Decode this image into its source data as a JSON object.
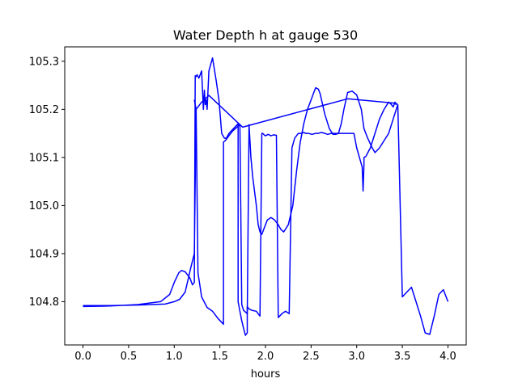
{
  "chart_data": {
    "type": "line",
    "title": "Water Depth h at gauge 530",
    "xlabel": "hours",
    "ylabel": "",
    "xlim": [
      -0.2,
      4.2
    ],
    "ylim": [
      104.71,
      105.33
    ],
    "xticks": [
      0.0,
      0.5,
      1.0,
      1.5,
      2.0,
      2.5,
      3.0,
      3.5,
      4.0
    ],
    "xtick_labels": [
      "0.0",
      "0.5",
      "1.0",
      "1.5",
      "2.0",
      "2.5",
      "3.0",
      "3.5",
      "4.0"
    ],
    "yticks": [
      104.8,
      104.9,
      105.0,
      105.1,
      105.2,
      105.3
    ],
    "ytick_labels": [
      "104.8",
      "104.9",
      "105.0",
      "105.1",
      "105.2",
      "105.3"
    ],
    "grid": false,
    "legend": false,
    "color": "#0000ff",
    "series": [
      {
        "x": [
          0.0,
          0.3,
          0.6,
          0.85,
          0.95,
          1.0,
          1.05,
          1.08,
          1.12,
          1.17,
          1.2,
          1.22,
          1.23,
          1.23,
          1.24,
          1.25,
          1.27,
          1.28,
          1.3,
          1.32,
          1.33,
          1.34,
          1.35,
          1.36,
          1.38,
          1.42,
          1.46,
          1.49,
          1.52,
          1.55,
          1.57,
          1.6,
          1.65,
          1.7,
          1.7,
          1.72,
          1.74,
          1.76,
          1.78,
          1.8,
          1.8,
          1.81,
          1.82,
          1.85,
          1.9,
          1.94,
          1.96,
          1.97,
          1.98,
          2.0,
          2.03,
          2.06,
          2.09,
          2.12,
          2.14,
          2.18,
          2.22,
          2.26,
          2.29,
          2.32,
          2.36,
          2.38,
          2.39,
          2.4,
          2.42,
          2.44,
          2.47,
          2.51,
          2.55,
          2.58,
          2.61,
          2.65,
          2.68,
          2.72,
          2.75,
          2.76,
          2.78,
          2.8,
          2.83,
          2.86,
          2.9,
          2.94,
          2.97,
          3.0,
          3.03,
          3.06,
          3.07,
          3.08,
          3.08,
          3.1,
          3.15,
          3.2,
          3.25,
          3.3,
          3.35,
          3.38,
          3.4,
          3.42,
          3.43,
          3.44,
          3.41,
          2.9,
          1.75,
          1.38,
          1.3,
          1.24,
          1.22,
          1.18,
          1.12,
          1.06,
          1.0,
          0.9,
          0.6,
          0.3,
          0.0
        ],
        "y": [
          104.79,
          104.791,
          104.794,
          104.8,
          104.815,
          104.84,
          104.86,
          104.865,
          104.862,
          104.85,
          104.835,
          104.84,
          105.27,
          105.27,
          105.268,
          105.272,
          105.265,
          105.27,
          105.28,
          105.2,
          105.24,
          105.21,
          105.22,
          105.2,
          105.28,
          105.307,
          105.26,
          105.22,
          105.15,
          105.14,
          105.14,
          105.15,
          105.16,
          105.17,
          104.8,
          104.78,
          104.76,
          104.745,
          104.73,
          104.735,
          104.79,
          104.787,
          104.785,
          104.782,
          104.78,
          104.77,
          105.15,
          105.15,
          105.148,
          105.145,
          105.148,
          105.145,
          105.147,
          105.146,
          104.767,
          104.775,
          104.78,
          104.775,
          105.12,
          105.14,
          105.15,
          105.15,
          105.15,
          105.15,
          105.152,
          105.15,
          105.15,
          105.148,
          105.15,
          105.15,
          105.152,
          105.15,
          105.148,
          105.15,
          105.15,
          105.15,
          105.15,
          105.15,
          105.15,
          105.15,
          105.15,
          105.15,
          105.15,
          105.12,
          105.1,
          105.08,
          105.03,
          105.085,
          105.1,
          105.102,
          105.12,
          105.15,
          105.18,
          105.2,
          105.215,
          105.21,
          105.205,
          105.215,
          105.21,
          105.212,
          105.213,
          105.222,
          105.163,
          105.229,
          105.215,
          105.2,
          104.9,
          104.87,
          104.82,
          104.805,
          104.8,
          104.795,
          104.793,
          104.792,
          104.792
        ]
      },
      {
        "x": [
          1.22,
          1.24,
          1.26,
          1.3,
          1.36,
          1.42,
          1.48,
          1.53,
          1.54,
          1.54,
          1.56,
          1.6,
          1.64,
          1.7,
          1.72,
          1.74,
          1.76,
          1.8,
          1.82,
          1.84,
          1.86,
          1.9,
          1.92,
          1.94,
          1.96,
          1.98,
          2.02,
          2.06,
          2.1,
          2.14,
          2.17,
          2.2,
          2.25,
          2.3,
          2.34,
          2.38,
          2.42,
          2.46,
          2.5,
          2.53,
          2.55,
          2.58,
          2.6,
          2.62,
          2.65,
          2.7,
          2.74,
          2.77,
          2.8,
          2.83,
          2.86,
          2.9,
          2.95,
          3.0,
          3.05,
          3.08,
          3.12,
          3.17,
          3.2,
          3.25,
          3.3,
          3.35,
          3.4,
          3.45,
          3.5,
          3.55,
          3.6,
          3.65,
          3.7,
          3.75,
          3.8,
          3.85,
          3.9,
          3.95,
          4.0
        ],
        "y": [
          105.22,
          105.2,
          104.86,
          104.81,
          104.788,
          104.78,
          104.765,
          104.755,
          104.753,
          105.132,
          105.135,
          105.145,
          105.155,
          105.165,
          105.168,
          104.794,
          104.782,
          104.775,
          105.168,
          105.1,
          105.06,
          105.0,
          104.96,
          104.945,
          104.94,
          104.95,
          104.97,
          104.975,
          104.97,
          104.96,
          104.95,
          104.945,
          104.96,
          105.0,
          105.07,
          105.13,
          105.17,
          105.2,
          105.22,
          105.235,
          105.245,
          105.242,
          105.232,
          105.215,
          105.19,
          105.16,
          105.148,
          105.148,
          105.15,
          105.17,
          105.2,
          105.235,
          105.238,
          105.23,
          105.2,
          105.16,
          105.14,
          105.12,
          105.11,
          105.12,
          105.135,
          105.15,
          105.18,
          105.21,
          104.81,
          104.82,
          104.83,
          104.8,
          104.77,
          104.735,
          104.732,
          104.77,
          104.815,
          104.825,
          104.8
        ]
      }
    ]
  }
}
